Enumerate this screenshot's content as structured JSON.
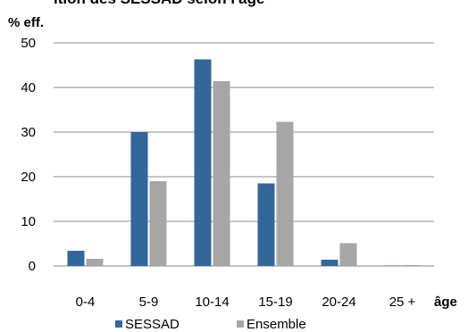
{
  "title_fragment": "ition des SESSAD selon l'âge",
  "chart_data": {
    "type": "bar",
    "ylabel": "% eff.",
    "xlabel": "âge",
    "categories": [
      "0-4",
      "5-9",
      "10-14",
      "15-19",
      "20-24",
      "25 +"
    ],
    "ylim": [
      0,
      50
    ],
    "yticks": [
      0,
      10,
      20,
      30,
      40,
      50
    ],
    "grid": true,
    "legend_position": "bottom",
    "series": [
      {
        "name": "SESSAD",
        "color": "#336699",
        "values": [
          3.4,
          30.0,
          46.3,
          18.5,
          1.4,
          0.1
        ]
      },
      {
        "name": "Ensemble",
        "color": "#a6a6a6",
        "values": [
          1.6,
          19.0,
          41.4,
          32.3,
          5.1,
          0.2
        ]
      }
    ]
  }
}
